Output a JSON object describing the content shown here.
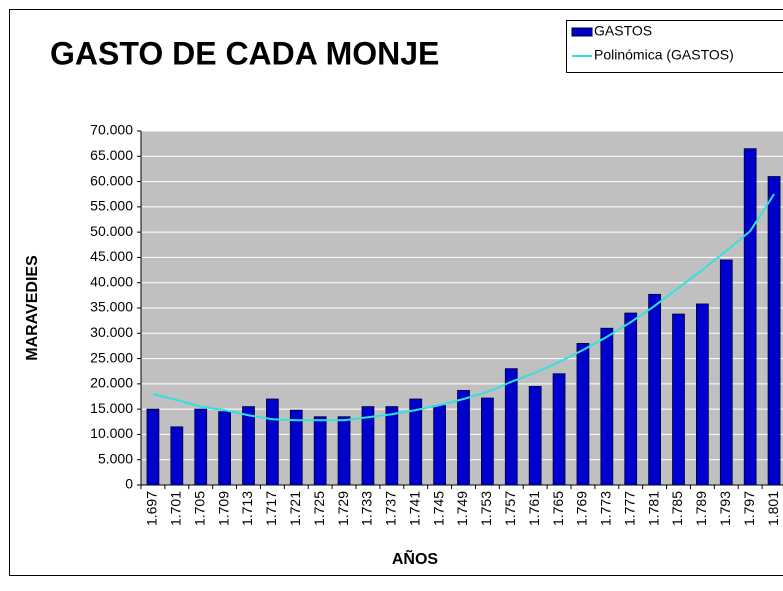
{
  "chart_data": {
    "type": "bar",
    "title": "GASTO DE CADA MONJE",
    "x_label": "AÑOS",
    "y_label": "MARAVEDIES",
    "categories": [
      "1.697",
      "1.701",
      "1.705",
      "1.709",
      "1.713",
      "1.717",
      "1.721",
      "1.725",
      "1.729",
      "1.733",
      "1.737",
      "1.741",
      "1.745",
      "1.749",
      "1.753",
      "1.757",
      "1.761",
      "1.765",
      "1.769",
      "1.773",
      "1.777",
      "1.781",
      "1.785",
      "1.789",
      "1.793",
      "1.797",
      "1.801"
    ],
    "series": [
      {
        "name": "GASTOS",
        "type": "bar",
        "color": "#0000cc",
        "values": [
          15000,
          11500,
          15000,
          14500,
          15500,
          17000,
          14800,
          13500,
          13500,
          15500,
          15500,
          17000,
          15700,
          18700,
          17200,
          23000,
          19500,
          22000,
          28000,
          31000,
          34000,
          37700,
          33800,
          35800,
          44500,
          66500,
          61000
        ]
      },
      {
        "name": "Polinómica (GASTOS)",
        "type": "line",
        "color": "#33e0e0",
        "values": [
          18000,
          16800,
          15500,
          14800,
          13800,
          13000,
          12800,
          12800,
          12800,
          13400,
          14000,
          14800,
          15800,
          17000,
          18400,
          20400,
          22200,
          24300,
          26700,
          29300,
          32200,
          35400,
          39000,
          42500,
          46300,
          50200,
          57500
        ]
      }
    ],
    "ylim": [
      0,
      70000
    ],
    "yticks": [
      0,
      {
        "value": 5000,
        "label": "5.000"
      },
      {
        "value": 10000,
        "label": "10.000"
      },
      {
        "value": 15000,
        "label": "15.000"
      },
      {
        "value": 20000,
        "label": "20.000"
      },
      {
        "value": 25000,
        "label": "25.000"
      },
      {
        "value": 30000,
        "label": "30.000"
      },
      {
        "value": 35000,
        "label": "35.000"
      },
      {
        "value": 40000,
        "label": "40.000"
      },
      {
        "value": 45000,
        "label": "45.000"
      },
      {
        "value": 50000,
        "label": "50.000"
      },
      {
        "value": 55000,
        "label": "55.000"
      },
      {
        "value": 60000,
        "label": "60.000"
      },
      {
        "value": 65000,
        "label": "65.000"
      },
      {
        "value": 70000,
        "label": "70.000"
      }
    ],
    "grid": true,
    "plot_background": "#c0c0c0",
    "legend": "top-right"
  }
}
